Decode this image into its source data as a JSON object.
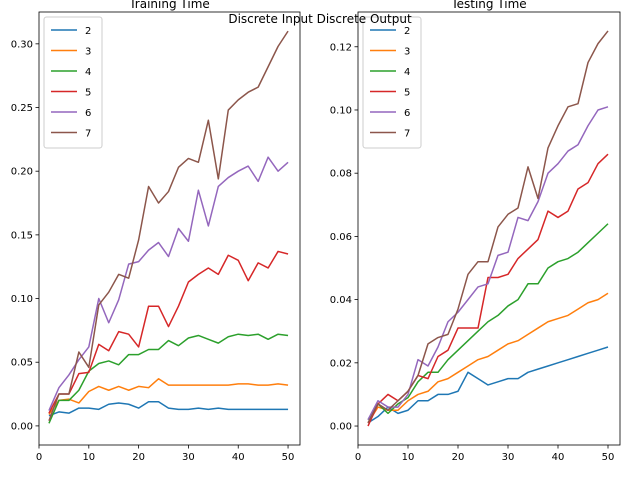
{
  "suptitle": "Discrete Input Discrete Output",
  "colors": {
    "2": "#1f77b4",
    "3": "#ff7f0e",
    "4": "#2ca02c",
    "5": "#d62728",
    "6": "#9467bd",
    "7": "#8c564b"
  },
  "chart_data": [
    {
      "type": "line",
      "title": "Training Time",
      "xlabel": "",
      "ylabel": "",
      "xlim": [
        0,
        52.4
      ],
      "ylim": [
        -0.015,
        0.325
      ],
      "xticks": [
        0,
        10,
        20,
        30,
        40,
        50
      ],
      "yticks": [
        0.0,
        0.05,
        0.1,
        0.15,
        0.2,
        0.25,
        0.3
      ],
      "ytick_labels": [
        "0.00",
        "0.05",
        "0.10",
        "0.15",
        "0.20",
        "0.25",
        "0.30"
      ],
      "legend_position": "upper-left",
      "x": [
        2,
        4,
        6,
        8,
        10,
        12,
        14,
        16,
        18,
        20,
        22,
        24,
        26,
        28,
        30,
        32,
        34,
        36,
        38,
        40,
        42,
        44,
        46,
        48,
        50
      ],
      "series": [
        {
          "name": "2",
          "values": [
            0.008,
            0.011,
            0.01,
            0.014,
            0.014,
            0.013,
            0.017,
            0.018,
            0.017,
            0.014,
            0.019,
            0.019,
            0.014,
            0.013,
            0.013,
            0.014,
            0.013,
            0.014,
            0.013,
            0.013,
            0.013,
            0.013,
            0.013,
            0.013,
            0.013
          ]
        },
        {
          "name": "3",
          "values": [
            0.009,
            0.02,
            0.021,
            0.018,
            0.027,
            0.031,
            0.028,
            0.031,
            0.028,
            0.031,
            0.03,
            0.037,
            0.032,
            0.032,
            0.032,
            0.032,
            0.032,
            0.032,
            0.032,
            0.033,
            0.033,
            0.032,
            0.032,
            0.033,
            0.032
          ]
        },
        {
          "name": "4",
          "values": [
            0.002,
            0.02,
            0.02,
            0.028,
            0.043,
            0.049,
            0.051,
            0.048,
            0.056,
            0.056,
            0.06,
            0.06,
            0.067,
            0.063,
            0.069,
            0.071,
            0.068,
            0.065,
            0.07,
            0.072,
            0.071,
            0.072,
            0.068,
            0.072,
            0.071
          ]
        },
        {
          "name": "5",
          "values": [
            0.01,
            0.025,
            0.025,
            0.041,
            0.042,
            0.064,
            0.059,
            0.074,
            0.072,
            0.062,
            0.094,
            0.094,
            0.078,
            0.094,
            0.113,
            0.119,
            0.124,
            0.119,
            0.134,
            0.13,
            0.114,
            0.128,
            0.124,
            0.137,
            0.135
          ]
        },
        {
          "name": "6",
          "values": [
            0.012,
            0.03,
            0.04,
            0.052,
            0.062,
            0.1,
            0.081,
            0.099,
            0.127,
            0.129,
            0.138,
            0.144,
            0.133,
            0.155,
            0.145,
            0.185,
            0.157,
            0.188,
            0.195,
            0.2,
            0.204,
            0.192,
            0.211,
            0.2,
            0.207
          ]
        },
        {
          "name": "7",
          "values": [
            0.004,
            0.025,
            0.025,
            0.058,
            0.046,
            0.095,
            0.105,
            0.119,
            0.116,
            0.146,
            0.188,
            0.175,
            0.184,
            0.203,
            0.21,
            0.207,
            0.24,
            0.194,
            0.248,
            0.256,
            0.262,
            0.266,
            0.282,
            0.298,
            0.31
          ]
        }
      ]
    },
    {
      "type": "line",
      "title": "Testing Time",
      "xlabel": "",
      "ylabel": "",
      "xlim": [
        0,
        52.4
      ],
      "ylim": [
        -0.006,
        0.131
      ],
      "xticks": [
        0,
        10,
        20,
        30,
        40,
        50
      ],
      "yticks": [
        0.0,
        0.02,
        0.04,
        0.06,
        0.08,
        0.1,
        0.12
      ],
      "ytick_labels": [
        "0.00",
        "0.02",
        "0.04",
        "0.06",
        "0.08",
        "0.10",
        "0.12"
      ],
      "legend_position": "upper-left",
      "x": [
        2,
        4,
        6,
        8,
        10,
        12,
        14,
        16,
        18,
        20,
        22,
        24,
        26,
        28,
        30,
        32,
        34,
        36,
        38,
        40,
        42,
        44,
        46,
        48,
        50
      ],
      "series": [
        {
          "name": "2",
          "values": [
            0.001,
            0.003,
            0.006,
            0.004,
            0.005,
            0.008,
            0.008,
            0.01,
            0.01,
            0.011,
            0.017,
            0.015,
            0.013,
            0.014,
            0.015,
            0.015,
            0.017,
            0.018,
            0.019,
            0.02,
            0.021,
            0.022,
            0.023,
            0.024,
            0.025
          ]
        },
        {
          "name": "3",
          "values": [
            0.001,
            0.006,
            0.005,
            0.005,
            0.008,
            0.01,
            0.011,
            0.014,
            0.015,
            0.017,
            0.019,
            0.021,
            0.022,
            0.024,
            0.026,
            0.027,
            0.029,
            0.031,
            0.033,
            0.034,
            0.035,
            0.037,
            0.039,
            0.04,
            0.042
          ]
        },
        {
          "name": "4",
          "values": [
            0.002,
            0.007,
            0.004,
            0.007,
            0.009,
            0.014,
            0.017,
            0.017,
            0.021,
            0.024,
            0.027,
            0.03,
            0.033,
            0.035,
            0.038,
            0.04,
            0.045,
            0.045,
            0.05,
            0.052,
            0.053,
            0.055,
            0.058,
            0.061,
            0.064
          ]
        },
        {
          "name": "5",
          "values": [
            0.0,
            0.007,
            0.01,
            0.008,
            0.011,
            0.016,
            0.015,
            0.022,
            0.024,
            0.031,
            0.031,
            0.031,
            0.047,
            0.047,
            0.048,
            0.053,
            0.056,
            0.059,
            0.068,
            0.066,
            0.068,
            0.075,
            0.077,
            0.083,
            0.086
          ]
        },
        {
          "name": "6",
          "values": [
            0.002,
            0.008,
            0.006,
            0.006,
            0.01,
            0.021,
            0.019,
            0.025,
            0.033,
            0.036,
            0.04,
            0.044,
            0.045,
            0.054,
            0.055,
            0.066,
            0.065,
            0.071,
            0.08,
            0.083,
            0.087,
            0.089,
            0.095,
            0.1,
            0.101
          ]
        },
        {
          "name": "7",
          "values": [
            0.001,
            0.007,
            0.005,
            0.008,
            0.011,
            0.016,
            0.026,
            0.028,
            0.029,
            0.037,
            0.048,
            0.052,
            0.052,
            0.063,
            0.067,
            0.069,
            0.082,
            0.072,
            0.088,
            0.095,
            0.101,
            0.102,
            0.115,
            0.121,
            0.125
          ]
        }
      ]
    }
  ]
}
